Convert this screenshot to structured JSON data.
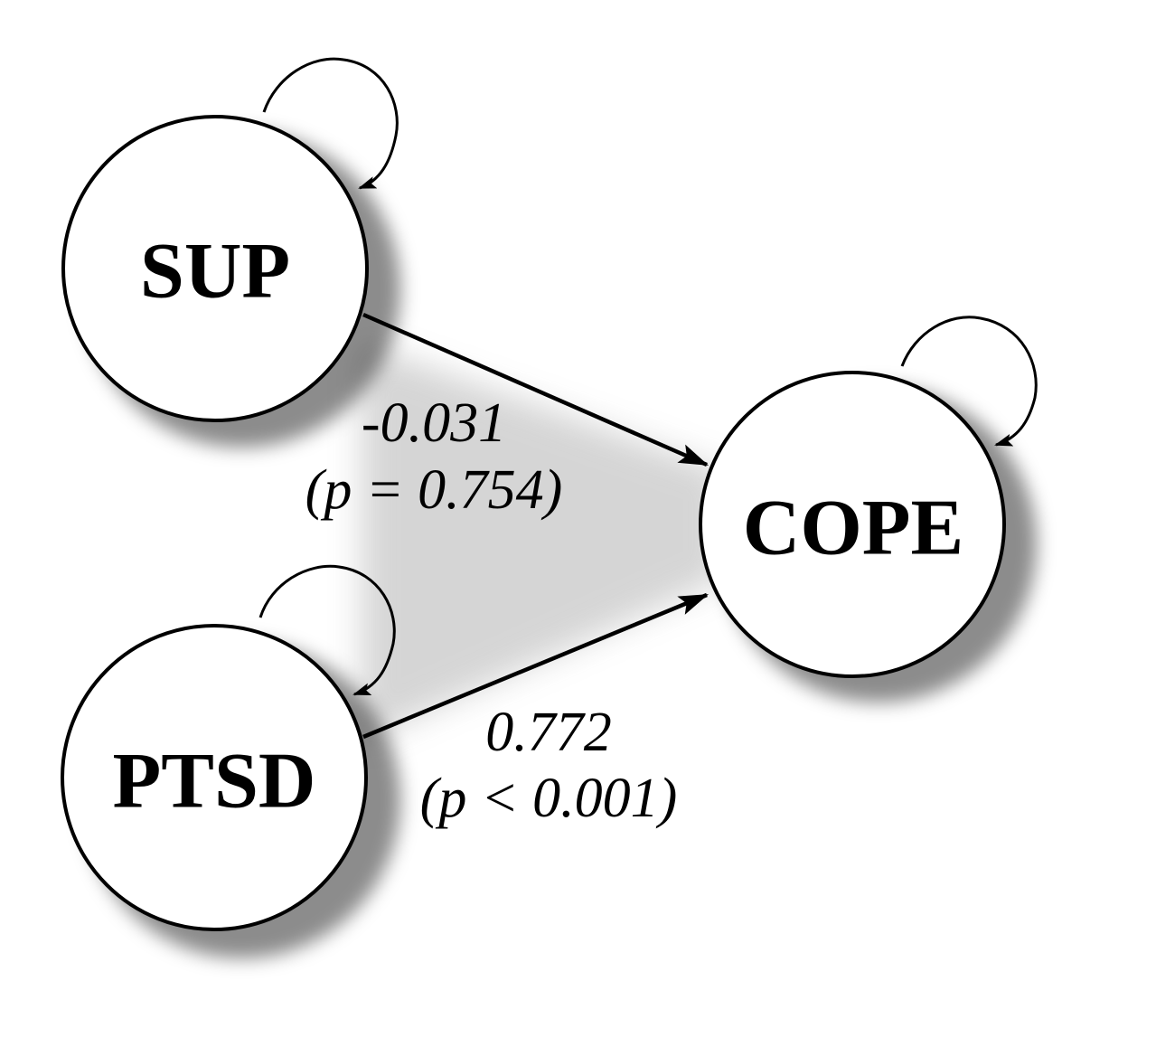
{
  "nodes": {
    "sup": {
      "label": "SUP"
    },
    "ptsd": {
      "label": "PTSD"
    },
    "cope": {
      "label": "COPE"
    }
  },
  "edges": {
    "sup_to_cope": {
      "coefficient": "-0.031",
      "p_value": "(p = 0.754)"
    },
    "ptsd_to_cope": {
      "coefficient": "0.772",
      "p_value": "(p < 0.001)"
    }
  }
}
